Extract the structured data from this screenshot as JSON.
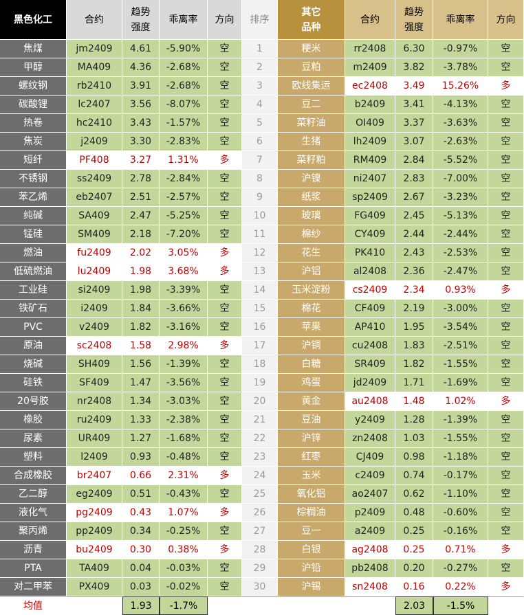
{
  "header": {
    "left": [
      "黑色化工",
      "合约",
      "趋势\n强度",
      "乖离率",
      "方向"
    ],
    "rank": "排序",
    "right": [
      "其它\n品种",
      "合约",
      "趋势\n强度",
      "乖离率",
      "方向"
    ]
  },
  "rows": [
    {
      "left": [
        "焦煤",
        "jm2409",
        "4.61",
        "-5.90%",
        "空"
      ],
      "rank": "1",
      "right": [
        "粳米",
        "rr2408",
        "6.30",
        "-0.97%",
        "空"
      ]
    },
    {
      "left": [
        "甲醇",
        "MA409",
        "4.36",
        "-2.68%",
        "空"
      ],
      "rank": "2",
      "right": [
        "豆粕",
        "m2409",
        "3.82",
        "-3.78%",
        "空"
      ]
    },
    {
      "left": [
        "螺纹钢",
        "rb2410",
        "3.91",
        "-2.68%",
        "空"
      ],
      "rank": "3",
      "right": [
        "欧线集运",
        "ec2408",
        "3.49",
        "15.26%",
        "多"
      ]
    },
    {
      "left": [
        "碳酸锂",
        "lc2407",
        "3.56",
        "-8.07%",
        "空"
      ],
      "rank": "4",
      "right": [
        "豆二",
        "b2409",
        "3.41",
        "-4.13%",
        "空"
      ]
    },
    {
      "left": [
        "热卷",
        "hc2410",
        "3.43",
        "-1.57%",
        "空"
      ],
      "rank": "5",
      "right": [
        "菜籽油",
        "OI409",
        "3.37",
        "-3.63%",
        "空"
      ]
    },
    {
      "left": [
        "焦炭",
        "j2409",
        "3.30",
        "-2.83%",
        "空"
      ],
      "rank": "6",
      "right": [
        "生猪",
        "lh2409",
        "3.07",
        "-2.63%",
        "空"
      ]
    },
    {
      "left": [
        "短纤",
        "PF408",
        "3.27",
        "1.31%",
        "多"
      ],
      "rank": "7",
      "right": [
        "菜籽粕",
        "RM409",
        "2.84",
        "-5.52%",
        "空"
      ]
    },
    {
      "left": [
        "不锈钢",
        "ss2409",
        "2.78",
        "-2.84%",
        "空"
      ],
      "rank": "8",
      "right": [
        "沪镍",
        "ni2407",
        "2.83",
        "-7.00%",
        "空"
      ]
    },
    {
      "left": [
        "苯乙烯",
        "eb2407",
        "2.51",
        "-2.57%",
        "空"
      ],
      "rank": "9",
      "right": [
        "纸浆",
        "sp2409",
        "2.67",
        "-3.23%",
        "空"
      ]
    },
    {
      "left": [
        "纯碱",
        "SA409",
        "2.47",
        "-5.25%",
        "空"
      ],
      "rank": "10",
      "right": [
        "玻璃",
        "FG409",
        "2.45",
        "-5.13%",
        "空"
      ]
    },
    {
      "left": [
        "锰硅",
        "SM409",
        "2.18",
        "-7.20%",
        "空"
      ],
      "rank": "11",
      "right": [
        "棉纱",
        "CY409",
        "2.44",
        "-2.44%",
        "空"
      ]
    },
    {
      "left": [
        "燃油",
        "fu2409",
        "2.02",
        "3.05%",
        "多"
      ],
      "rank": "12",
      "right": [
        "花生",
        "PK410",
        "2.43",
        "-2.53%",
        "空"
      ]
    },
    {
      "left": [
        "低硫燃油",
        "lu2409",
        "1.98",
        "3.68%",
        "多"
      ],
      "rank": "13",
      "right": [
        "沪铝",
        "al2408",
        "2.36",
        "-2.47%",
        "空"
      ]
    },
    {
      "left": [
        "工业硅",
        "si2409",
        "1.98",
        "-3.39%",
        "空"
      ],
      "rank": "14",
      "right": [
        "玉米淀粉",
        "cs2409",
        "2.34",
        "0.93%",
        "多"
      ]
    },
    {
      "left": [
        "铁矿石",
        "i2409",
        "1.84",
        "-3.66%",
        "空"
      ],
      "rank": "15",
      "right": [
        "棉花",
        "CF409",
        "2.19",
        "-3.00%",
        "空"
      ]
    },
    {
      "left": [
        "PVC",
        "v2409",
        "1.82",
        "-3.16%",
        "空"
      ],
      "rank": "16",
      "right": [
        "苹果",
        "AP410",
        "1.95",
        "-3.54%",
        "空"
      ]
    },
    {
      "left": [
        "原油",
        "sc2408",
        "1.58",
        "2.98%",
        "多"
      ],
      "rank": "17",
      "right": [
        "沪铜",
        "cu2408",
        "1.83",
        "-2.51%",
        "空"
      ]
    },
    {
      "left": [
        "烧碱",
        "SH409",
        "1.56",
        "-1.39%",
        "空"
      ],
      "rank": "18",
      "right": [
        "白糖",
        "SR409",
        "1.82",
        "-1.55%",
        "空"
      ]
    },
    {
      "left": [
        "硅铁",
        "SF409",
        "1.47",
        "-3.56%",
        "空"
      ],
      "rank": "19",
      "right": [
        "鸡蛋",
        "jd2409",
        "1.71",
        "-1.69%",
        "空"
      ]
    },
    {
      "left": [
        "20号胶",
        "nr2408",
        "1.34",
        "-3.03%",
        "空"
      ],
      "rank": "20",
      "right": [
        "黄金",
        "au2408",
        "1.48",
        "1.02%",
        "多"
      ]
    },
    {
      "left": [
        "橡胶",
        "ru2409",
        "1.33",
        "-2.38%",
        "空"
      ],
      "rank": "21",
      "right": [
        "豆油",
        "y2409",
        "1.28",
        "-1.39%",
        "空"
      ]
    },
    {
      "left": [
        "尿素",
        "UR409",
        "1.27",
        "-1.68%",
        "空"
      ],
      "rank": "22",
      "right": [
        "沪锌",
        "zn2408",
        "1.03",
        "-1.55%",
        "空"
      ]
    },
    {
      "left": [
        "塑料",
        "l2409",
        "0.93",
        "-0.48%",
        "空"
      ],
      "rank": "23",
      "right": [
        "红枣",
        "CJ409",
        "0.98",
        "-1.18%",
        "空"
      ]
    },
    {
      "left": [
        "合成橡胶",
        "br2407",
        "0.66",
        "2.31%",
        "多"
      ],
      "rank": "24",
      "right": [
        "玉米",
        "c2409",
        "0.74",
        "-0.17%",
        "空"
      ]
    },
    {
      "left": [
        "乙二醇",
        "eg2409",
        "0.51",
        "-0.43%",
        "空"
      ],
      "rank": "25",
      "right": [
        "氧化铝",
        "ao2407",
        "0.62",
        "-1.10%",
        "空"
      ]
    },
    {
      "left": [
        "液化气",
        "pg2409",
        "0.43",
        "1.07%",
        "多"
      ],
      "rank": "26",
      "right": [
        "棕榈油",
        "p2409",
        "0.48",
        "-0.60%",
        "空"
      ]
    },
    {
      "left": [
        "聚丙烯",
        "pp2409",
        "0.34",
        "-0.25%",
        "空"
      ],
      "rank": "27",
      "right": [
        "豆一",
        "a2409",
        "0.25",
        "-0.16%",
        "空"
      ]
    },
    {
      "left": [
        "沥青",
        "bu2409",
        "0.30",
        "0.38%",
        "多"
      ],
      "rank": "28",
      "right": [
        "白银",
        "ag2408",
        "0.25",
        "0.71%",
        "多"
      ]
    },
    {
      "left": [
        "PTA",
        "TA409",
        "0.04",
        "-0.03%",
        "空"
      ],
      "rank": "29",
      "right": [
        "沪铅",
        "pb2408",
        "0.20",
        "-0.27%",
        "空"
      ]
    },
    {
      "left": [
        "对二甲苯",
        "PX409",
        "0.03",
        "-0.02%",
        "空"
      ],
      "rank": "30",
      "right": [
        "沪锡",
        "sn2408",
        "0.16",
        "0.22%",
        "多"
      ]
    }
  ],
  "footer": {
    "label": "均值",
    "left": [
      "1.93",
      "-1.7%"
    ],
    "right": [
      "2.03",
      "-1.5%"
    ]
  }
}
